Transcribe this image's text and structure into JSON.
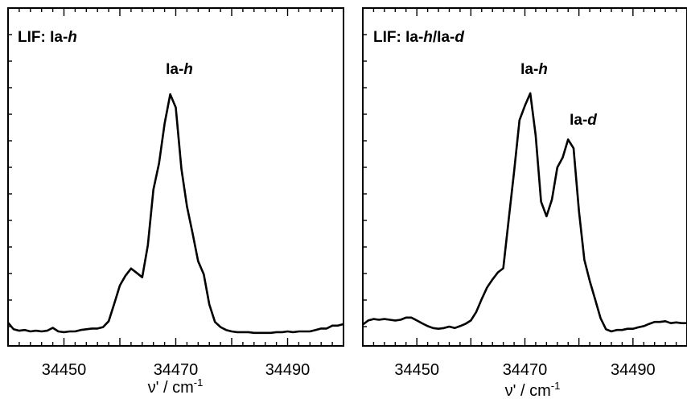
{
  "chart_data": [
    {
      "type": "line",
      "title": "LIF: Ia-h",
      "title_parts": {
        "prefix": "LIF: Ia-",
        "italic": "h"
      },
      "xlabel": "ν' / cm-1",
      "xlabel_parts": {
        "main": "ν' / cm",
        "sup": "-1"
      },
      "ylabel": "",
      "xlim": [
        34440,
        34500
      ],
      "ylim": [
        0,
        1
      ],
      "xticks": [
        34450,
        34470,
        34490
      ],
      "xtick_labels": [
        "34450",
        "34470",
        "34490"
      ],
      "yticks_unlabeled": true,
      "grid": false,
      "annotations": [
        {
          "text": "Ia-h",
          "parts": {
            "prefix": "Ia-",
            "italic": "h"
          },
          "x": 34472,
          "y": 1.0
        }
      ],
      "series": [
        {
          "x": [
            34440,
            34441,
            34442,
            34443,
            34444,
            34445,
            34446,
            34447,
            34448,
            34449,
            34450,
            34451,
            34452,
            34453,
            34454,
            34455,
            34456,
            34457,
            34458,
            34459,
            34460,
            34461,
            34462,
            34463,
            34464,
            34465,
            34466,
            34467,
            34468,
            34469,
            34470,
            34471,
            34472,
            34473,
            34474,
            34475,
            34476,
            34477,
            34478,
            34479,
            34480,
            34481,
            34482,
            34483,
            34484,
            34485,
            34486,
            34487,
            34488,
            34489,
            34490,
            34491,
            34492,
            34493,
            34494,
            34495,
            34496,
            34497,
            34498,
            34499,
            34500
          ],
          "y": [
            0.036,
            0.009,
            0.003,
            0.006,
            0.0,
            0.003,
            0.0,
            0.003,
            0.015,
            0.0,
            -0.003,
            0.0,
            0.0,
            0.006,
            0.009,
            0.012,
            0.012,
            0.018,
            0.042,
            0.114,
            0.189,
            0.229,
            0.259,
            0.241,
            0.223,
            0.355,
            0.584,
            0.692,
            0.855,
            0.976,
            0.922,
            0.67,
            0.515,
            0.404,
            0.289,
            0.235,
            0.111,
            0.039,
            0.018,
            0.006,
            0.0,
            -0.003,
            -0.003,
            -0.003,
            -0.006,
            -0.006,
            -0.006,
            -0.006,
            -0.003,
            -0.003,
            0.0,
            -0.003,
            0.0,
            0.0,
            0.0,
            0.006,
            0.012,
            0.012,
            0.024,
            0.024,
            0.03
          ]
        }
      ]
    },
    {
      "type": "line",
      "title": "LIF: Ia-h/Ia-d",
      "title_parts": {
        "prefix": "LIF: Ia-",
        "italic": "h",
        "mid": "/Ia-",
        "italic2": "d"
      },
      "xlabel": "ν' / cm-1",
      "xlabel_parts": {
        "main": "ν' / cm",
        "sup": "-1"
      },
      "ylabel": "",
      "xlim": [
        34440,
        34500
      ],
      "ylim": [
        0,
        1
      ],
      "xticks": [
        34450,
        34470,
        34490
      ],
      "xtick_labels": [
        "34450",
        "34470",
        "34490"
      ],
      "yticks_unlabeled": true,
      "grid": false,
      "annotations": [
        {
          "text": "Ia-h",
          "parts": {
            "prefix": "Ia-",
            "italic": "h"
          },
          "x": 34471,
          "y": 1.0
        },
        {
          "text": "Ia-d",
          "parts": {
            "prefix": "Ia-",
            "italic": "d"
          },
          "x": 34479,
          "y": 0.74
        }
      ],
      "series": [
        {
          "x": [
            34440,
            34441,
            34442,
            34443,
            34444,
            34445,
            34446,
            34447,
            34448,
            34449,
            34450,
            34451,
            34452,
            34453,
            34454,
            34455,
            34456,
            34457,
            34458,
            34459,
            34460,
            34461,
            34462,
            34463,
            34464,
            34465,
            34466,
            34467,
            34468,
            34469,
            34470,
            34471,
            34472,
            34473,
            34474,
            34475,
            34476,
            34477,
            34478,
            34479,
            34480,
            34481,
            34482,
            34483,
            34484,
            34485,
            34486,
            34487,
            34488,
            34489,
            34490,
            34491,
            34492,
            34493,
            34494,
            34495,
            34496,
            34497,
            34498,
            34499,
            34500
          ],
          "y": [
            0.028,
            0.045,
            0.051,
            0.048,
            0.051,
            0.048,
            0.045,
            0.048,
            0.057,
            0.057,
            0.045,
            0.033,
            0.022,
            0.014,
            0.011,
            0.014,
            0.02,
            0.014,
            0.022,
            0.031,
            0.045,
            0.08,
            0.133,
            0.181,
            0.214,
            0.243,
            0.26,
            0.462,
            0.659,
            0.87,
            0.929,
            0.98,
            0.806,
            0.534,
            0.474,
            0.543,
            0.675,
            0.716,
            0.79,
            0.754,
            0.495,
            0.295,
            0.208,
            0.132,
            0.055,
            0.009,
            0.0,
            0.006,
            0.006,
            0.011,
            0.011,
            0.017,
            0.022,
            0.031,
            0.039,
            0.039,
            0.042,
            0.034,
            0.037,
            0.034,
            0.034
          ]
        }
      ]
    }
  ]
}
